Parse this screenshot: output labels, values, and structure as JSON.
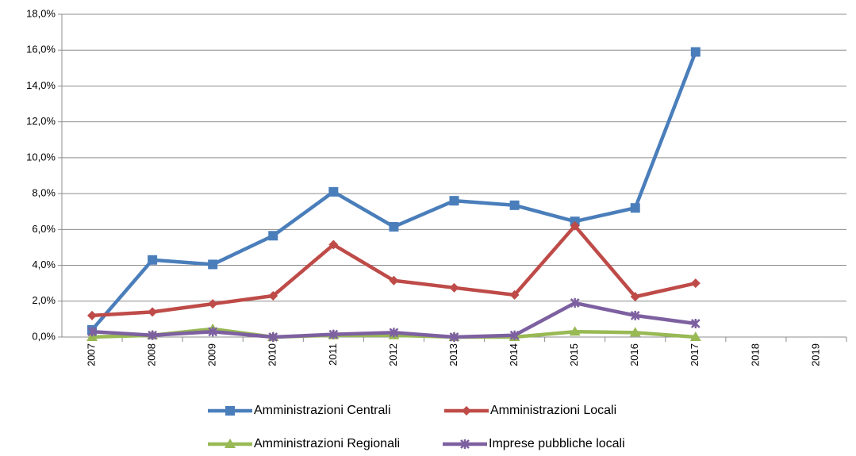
{
  "chart_data": {
    "type": "line",
    "categories": [
      "2007",
      "2008",
      "2009",
      "2010",
      "2011",
      "2012",
      "2013",
      "2014",
      "2015",
      "2016",
      "2017",
      "2018",
      "2019"
    ],
    "series": [
      {
        "name": "Amministrazioni Centrali",
        "color": "#4a7ebb",
        "marker": "square",
        "values": [
          0.4,
          4.3,
          4.05,
          5.65,
          8.1,
          6.15,
          7.6,
          7.35,
          6.45,
          7.2,
          15.9,
          null,
          null
        ]
      },
      {
        "name": "Amministrazioni Locali",
        "color": "#be4b48",
        "marker": "diamond",
        "values": [
          1.2,
          1.4,
          1.85,
          2.3,
          5.15,
          3.15,
          2.75,
          2.35,
          6.2,
          2.25,
          3.0,
          null,
          null
        ]
      },
      {
        "name": "Amministrazioni Regionali",
        "color": "#98b954",
        "marker": "triangle",
        "values": [
          0.0,
          0.1,
          0.45,
          0.0,
          0.1,
          0.1,
          0.0,
          0.0,
          0.3,
          0.25,
          0.0,
          null,
          null
        ]
      },
      {
        "name": "Imprese pubbliche locali",
        "color": "#7d60a0",
        "marker": "x",
        "values": [
          0.3,
          0.1,
          0.3,
          0.0,
          0.15,
          0.25,
          0.0,
          0.1,
          1.9,
          1.2,
          0.75,
          null,
          null
        ]
      }
    ],
    "ylim": [
      0,
      18
    ],
    "yticks": [
      {
        "value": 0,
        "label": "0,0%"
      },
      {
        "value": 2,
        "label": "2,0%"
      },
      {
        "value": 4,
        "label": "4,0%"
      },
      {
        "value": 6,
        "label": "6,0%"
      },
      {
        "value": 8,
        "label": "8,0%"
      },
      {
        "value": 10,
        "label": "10,0%"
      },
      {
        "value": 12,
        "label": "12,0%"
      },
      {
        "value": 14,
        "label": "14,0%"
      },
      {
        "value": 16,
        "label": "16,0%"
      },
      {
        "value": 18,
        "label": "18,0%"
      }
    ],
    "grid": true,
    "legend": "bottom"
  }
}
